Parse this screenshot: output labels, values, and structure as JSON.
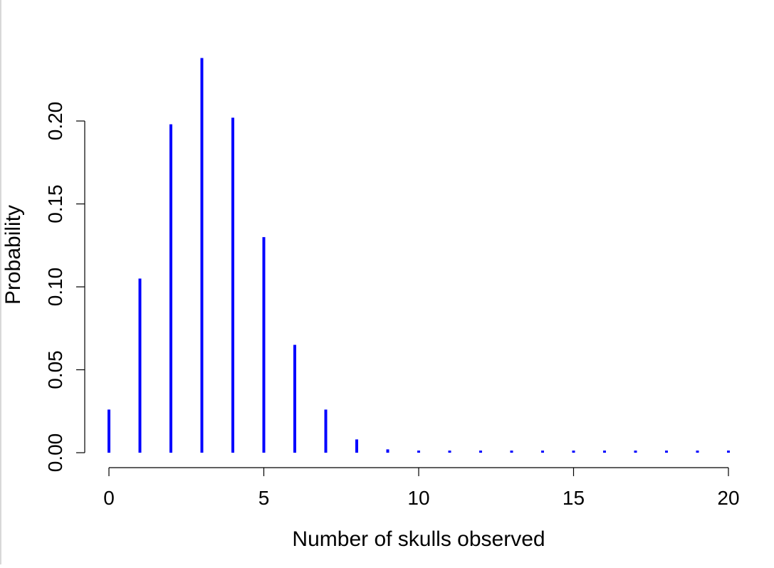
{
  "chart_data": {
    "type": "bar",
    "xlabel": "Number of skulls observed",
    "ylabel": "Probability",
    "xlim": [
      0,
      20
    ],
    "ylim": [
      0,
      0.24
    ],
    "x_ticks": [
      0,
      5,
      10,
      15,
      20
    ],
    "x_tick_labels": [
      "0",
      "5",
      "10",
      "15",
      "20"
    ],
    "y_ticks": [
      0.0,
      0.05,
      0.1,
      0.15,
      0.2
    ],
    "y_tick_labels": [
      "0.00",
      "0.05",
      "0.10",
      "0.15",
      "0.20"
    ],
    "grid": false,
    "series": [
      {
        "x": [
          0,
          1,
          2,
          3,
          4,
          5,
          6,
          7,
          8,
          9,
          10,
          11,
          12,
          13,
          14,
          15,
          16,
          17,
          18,
          19,
          20
        ],
        "values": [
          0.026,
          0.105,
          0.198,
          0.238,
          0.202,
          0.13,
          0.065,
          0.026,
          0.008,
          0.002,
          0.0004,
          0.0001,
          0.0,
          0.0,
          0.0,
          0.0,
          0.0,
          0.0,
          0.0,
          0.0,
          0.0
        ],
        "color": "#0000ff"
      }
    ]
  }
}
